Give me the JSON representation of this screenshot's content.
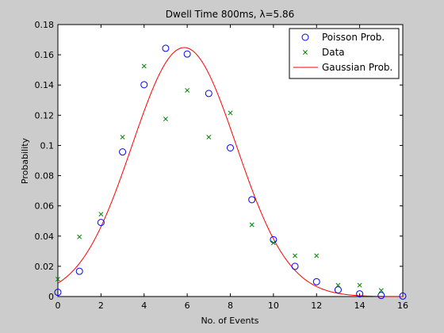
{
  "colors": {
    "figure_background": "#cccccc",
    "axes_background": "#ffffff",
    "poisson": "#0000ff",
    "data": "#008000",
    "gaussian": "#ff0000"
  },
  "chart_data": {
    "type": "line",
    "title": "Dwell Time 800ms, λ=5.86",
    "xlabel": "No. of Events",
    "ylabel": "Probability",
    "xlim": [
      0,
      16
    ],
    "ylim": [
      0,
      0.18
    ],
    "xticks": [
      "0",
      "2",
      "4",
      "6",
      "8",
      "10",
      "12",
      "14",
      "16"
    ],
    "yticks": [
      "0",
      "0.02",
      "0.04",
      "0.06",
      "0.08",
      "0.1",
      "0.12",
      "0.14",
      "0.16",
      "0.18"
    ],
    "grid": false,
    "legend_position": "top-right",
    "lambda": 5.86,
    "series": [
      {
        "name": "Poisson Prob.",
        "marker": "circle",
        "color": "#0000ff",
        "x": [
          0,
          1,
          2,
          3,
          4,
          5,
          6,
          7,
          8,
          9,
          10,
          11,
          12,
          13,
          14,
          15,
          16
        ],
        "y": [
          0.0028,
          0.0167,
          0.049,
          0.0957,
          0.1402,
          0.1643,
          0.1605,
          0.1344,
          0.0984,
          0.0641,
          0.0376,
          0.02,
          0.0098,
          0.0044,
          0.0018,
          0.0007,
          0.0003
        ]
      },
      {
        "name": "Data",
        "marker": "x",
        "color": "#008000",
        "x": [
          0,
          1,
          2,
          3,
          4,
          5,
          6,
          7,
          8,
          9,
          10,
          11,
          12,
          13,
          14,
          15
        ],
        "y": [
          0.0115,
          0.0395,
          0.0545,
          0.1055,
          0.1525,
          0.1175,
          0.1365,
          0.1055,
          0.1215,
          0.0475,
          0.0355,
          0.027,
          0.027,
          0.0075,
          0.0075,
          0.004
        ]
      },
      {
        "name": "Gaussian Prob.",
        "line": "solid",
        "color": "#ff0000",
        "mean": 5.86,
        "variance": 5.86,
        "x_range": [
          0,
          16
        ]
      }
    ]
  }
}
